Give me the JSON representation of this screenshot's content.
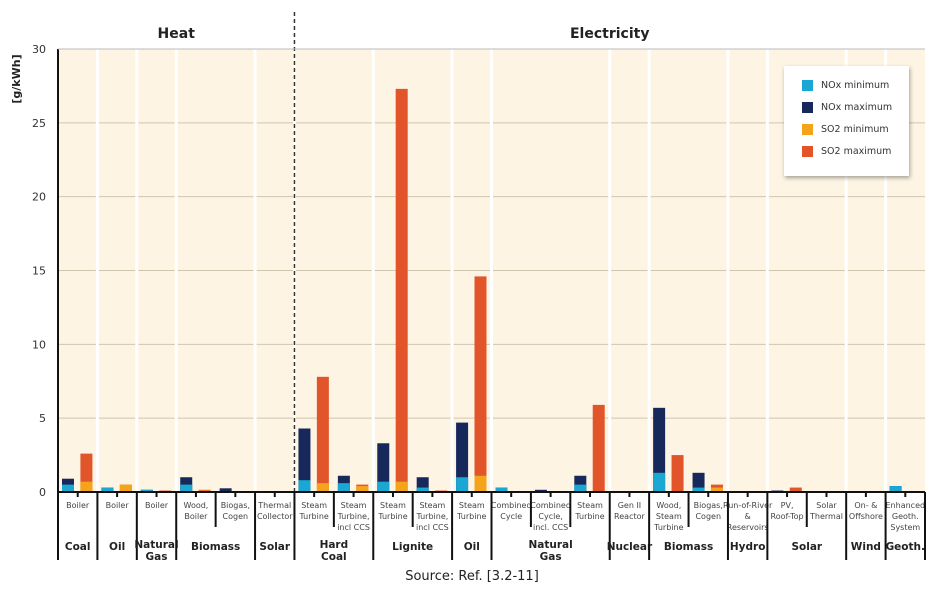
{
  "chart_data": {
    "type": "bar",
    "stacked": "min/max overlay",
    "ylabel": "[g/kWh]",
    "ylim": [
      0,
      30
    ],
    "yticks": [
      0,
      5,
      10,
      15,
      20,
      25,
      30
    ],
    "grid": true,
    "legend_placement": "top-right",
    "source": "Source: Ref. [3.2-11]",
    "sections": [
      {
        "name": "Heat",
        "groups": [
          {
            "name": "Coal",
            "subs": [
              {
                "label": "Boiler",
                "nox_min": 0.5,
                "nox_max": 0.9,
                "so2_min": 0.7,
                "so2_max": 2.6
              }
            ]
          },
          {
            "name": "Oil",
            "subs": [
              {
                "label": "Boiler",
                "nox_min": 0.3,
                "nox_max": 0.3,
                "so2_min": 0.5,
                "so2_max": 0.5
              }
            ]
          },
          {
            "name": "Natural Gas",
            "subs": [
              {
                "label": "Boiler",
                "nox_min": 0.15,
                "nox_max": 0.15,
                "so2_min": 0.0,
                "so2_max": 0.1
              }
            ]
          },
          {
            "name": "Biomass",
            "subs": [
              {
                "label": "Wood, Boiler",
                "nox_min": 0.5,
                "nox_max": 1.0,
                "so2_min": 0.1,
                "so2_max": 0.15
              },
              {
                "label": "Biogas, Cogen",
                "nox_min": 0.0,
                "nox_max": 0.25,
                "so2_min": 0.0,
                "so2_max": 0.05
              }
            ]
          },
          {
            "name": "Solar",
            "subs": [
              {
                "label": "Thermal Collector",
                "nox_min": 0.0,
                "nox_max": 0.03,
                "so2_min": 0.0,
                "so2_max": 0.03
              }
            ]
          }
        ]
      },
      {
        "name": "Electricity",
        "groups": [
          {
            "name": "Hard Coal",
            "subs": [
              {
                "label": "Steam Turbine",
                "nox_min": 0.8,
                "nox_max": 4.3,
                "so2_min": 0.6,
                "so2_max": 7.8
              },
              {
                "label": "Steam Turbine, incl CCS",
                "nox_min": 0.6,
                "nox_max": 1.1,
                "so2_min": 0.4,
                "so2_max": 0.5
              }
            ]
          },
          {
            "name": "Lignite",
            "subs": [
              {
                "label": "Steam Turbine",
                "nox_min": 0.7,
                "nox_max": 3.3,
                "so2_min": 0.7,
                "so2_max": 27.3
              },
              {
                "label": "Steam Turbine, incl CCS",
                "nox_min": 0.3,
                "nox_max": 1.0,
                "so2_min": 0.0,
                "so2_max": 0.1
              }
            ]
          },
          {
            "name": "Oil",
            "subs": [
              {
                "label": "Steam Turbine",
                "nox_min": 1.0,
                "nox_max": 4.7,
                "so2_min": 1.1,
                "so2_max": 14.6
              }
            ]
          },
          {
            "name": "Natural Gas",
            "subs": [
              {
                "label": "Combined Cycle",
                "nox_min": 0.3,
                "nox_max": 0.3,
                "so2_min": 0.0,
                "so2_max": 0.05
              },
              {
                "label": "Combined Cycle, incl. CCS",
                "nox_min": 0.0,
                "nox_max": 0.15,
                "so2_min": 0.0,
                "so2_max": 0.05
              },
              {
                "label": "Steam Turbine",
                "nox_min": 0.5,
                "nox_max": 1.1,
                "so2_min": 0.0,
                "so2_max": 5.9
              }
            ]
          },
          {
            "name": "Nuclear",
            "subs": [
              {
                "label": "Gen II Reactor",
                "nox_min": 0.0,
                "nox_max": 0.02,
                "so2_min": 0.0,
                "so2_max": 0.02
              }
            ]
          },
          {
            "name": "Biomass",
            "subs": [
              {
                "label": "Wood, Steam Turbine",
                "nox_min": 1.3,
                "nox_max": 5.7,
                "so2_min": 0.0,
                "so2_max": 2.5
              },
              {
                "label": "Biogas, Cogen",
                "nox_min": 0.3,
                "nox_max": 1.3,
                "so2_min": 0.3,
                "so2_max": 0.5
              }
            ]
          },
          {
            "name": "Hydro",
            "subs": [
              {
                "label": "Run-of-River & Reservoirs",
                "nox_min": 0.0,
                "nox_max": 0.02,
                "so2_min": 0.0,
                "so2_max": 0.02
              }
            ]
          },
          {
            "name": "Solar",
            "subs": [
              {
                "label": "PV, Roof-Top",
                "nox_min": 0.0,
                "nox_max": 0.1,
                "so2_min": 0.0,
                "so2_max": 0.3
              },
              {
                "label": "Solar Thermal",
                "nox_min": 0.0,
                "nox_max": 0.05,
                "so2_min": 0.0,
                "so2_max": 0.05
              }
            ]
          },
          {
            "name": "Wind",
            "subs": [
              {
                "label": "On- & Offshore",
                "nox_min": 0.0,
                "nox_max": 0.05,
                "so2_min": 0.0,
                "so2_max": 0.03
              }
            ]
          },
          {
            "name": "Geoth.",
            "subs": [
              {
                "label": "Enhanced Geoth. System",
                "nox_min": 0.4,
                "nox_max": 0.4,
                "so2_min": 0.0,
                "so2_max": 0.0
              }
            ]
          }
        ]
      }
    ],
    "series": [
      {
        "name": "NOx minimum",
        "color": "#1aa7d4"
      },
      {
        "name": "NOx maximum",
        "color": "#17285a"
      },
      {
        "name": "SO2 minimum",
        "color": "#f6a31c"
      },
      {
        "name": "SO2 maximum",
        "color": "#e2542a"
      }
    ]
  },
  "colors": {
    "plot_bg": "#fdf4e3",
    "grid": "#cfc6b0"
  }
}
